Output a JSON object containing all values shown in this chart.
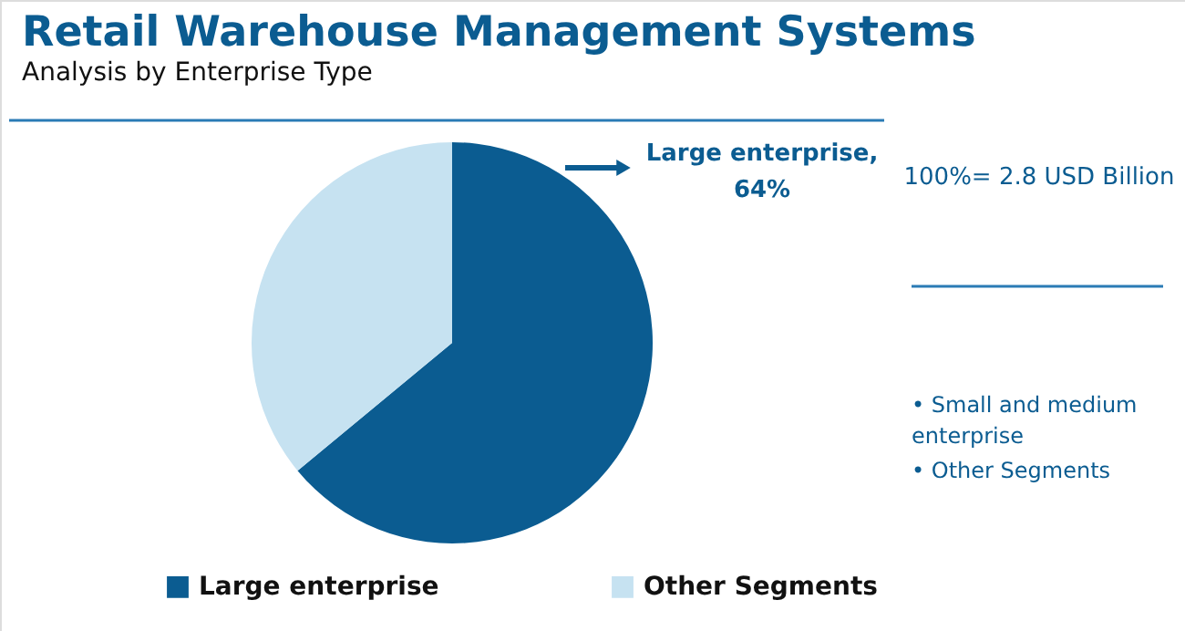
{
  "chart_data": {
    "type": "pie",
    "title": "Retail Warehouse Management Systems",
    "subtitle": "Analysis by Enterprise Type",
    "categories": [
      "Large enterprise",
      "Other Segments"
    ],
    "values": [
      64,
      36
    ],
    "colors": [
      "#0b5c91",
      "#c6e2f1"
    ],
    "value_labels": [
      "Large enterprise, 64%",
      null
    ],
    "legend": "bottom",
    "annotations": [
      "100%= 2.8 USD Billion",
      "• Small and medium enterprise",
      "• Other Segments"
    ]
  }
}
